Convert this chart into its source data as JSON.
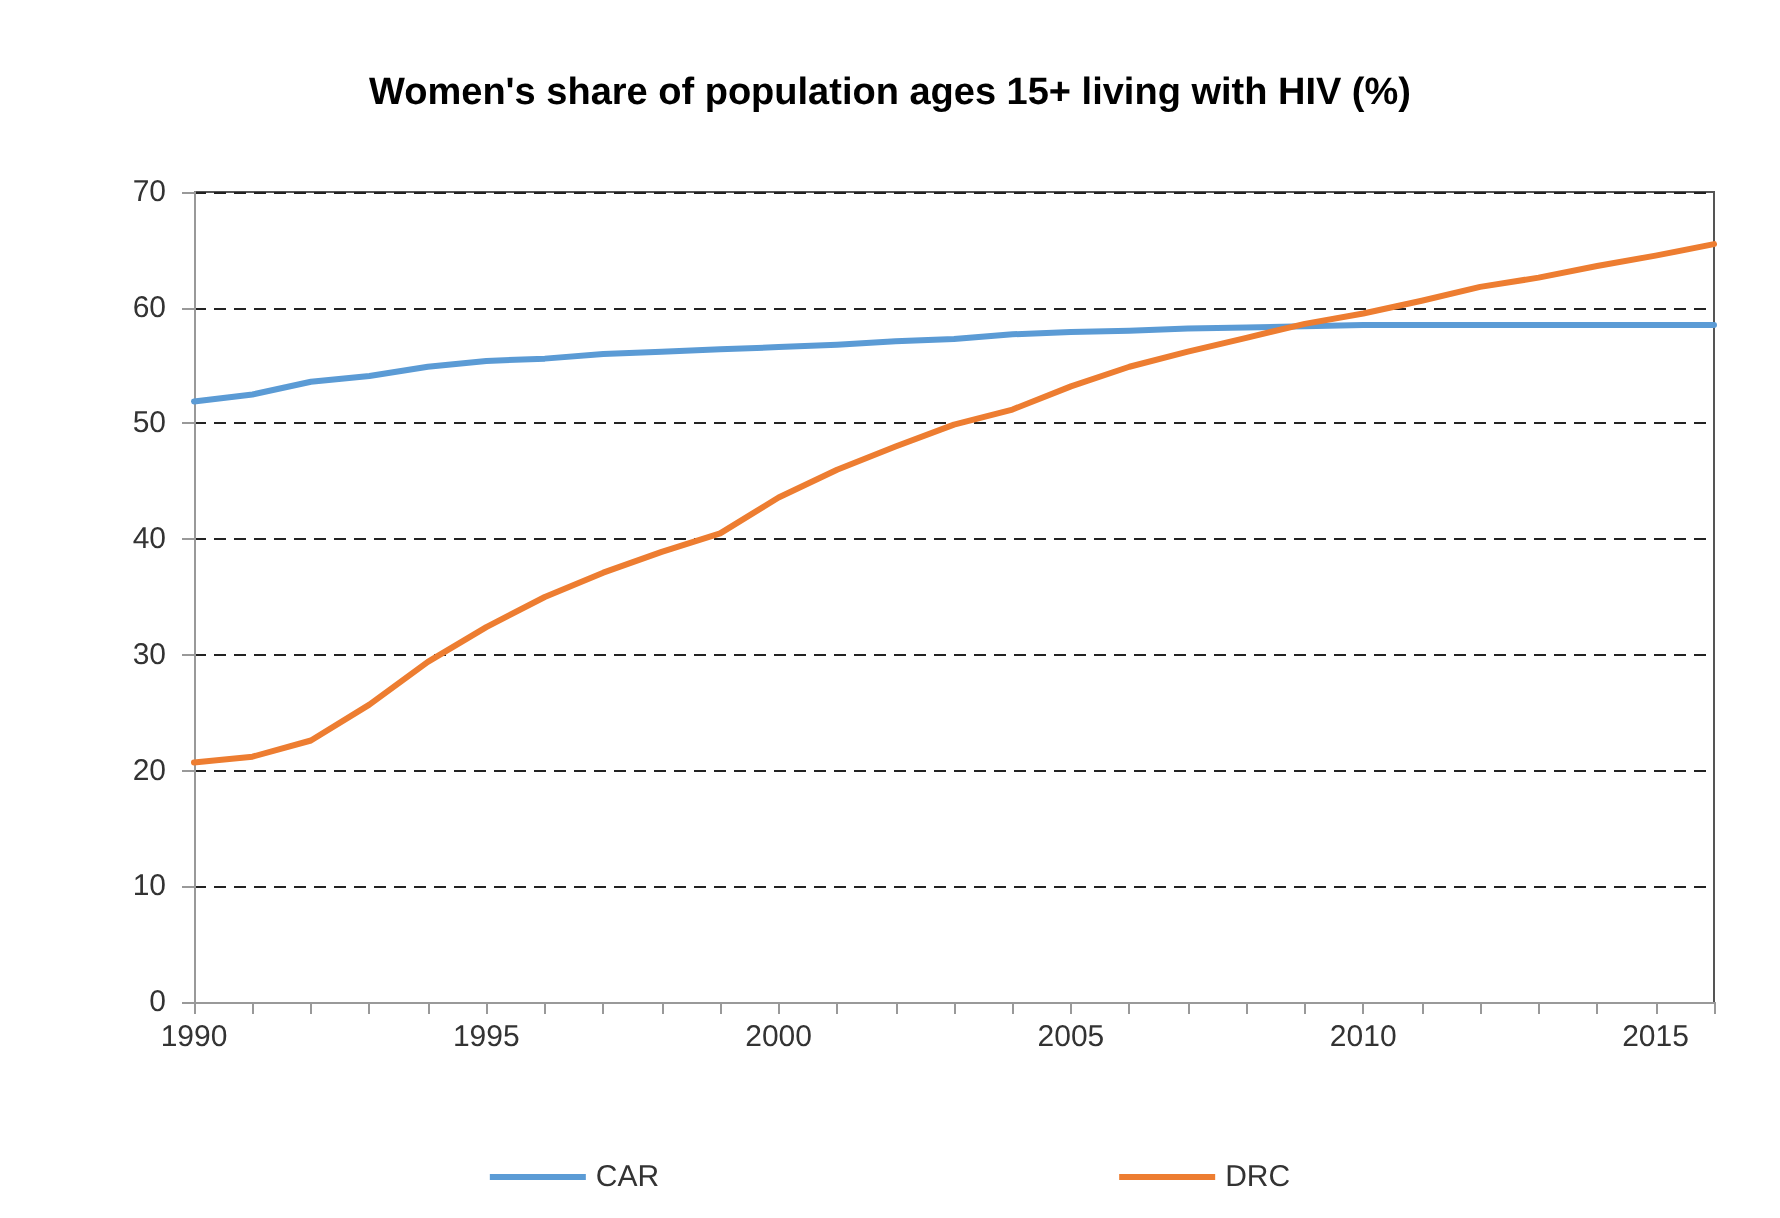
{
  "chart_data": {
    "type": "line",
    "title": "Women's share of population ages 15+ living with HIV (%)",
    "x": [
      1990,
      1991,
      1992,
      1993,
      1994,
      1995,
      1996,
      1997,
      1998,
      1999,
      2000,
      2001,
      2002,
      2003,
      2004,
      2005,
      2006,
      2007,
      2008,
      2009,
      2010,
      2011,
      2012,
      2013,
      2014,
      2015,
      2016
    ],
    "series": [
      {
        "name": "CAR",
        "color": "#5b9bd5",
        "values": [
          51.9,
          52.5,
          53.6,
          54.1,
          54.9,
          55.4,
          55.6,
          56.0,
          56.2,
          56.4,
          56.6,
          56.8,
          57.1,
          57.3,
          57.7,
          57.9,
          58.0,
          58.2,
          58.3,
          58.4,
          58.5,
          58.5,
          58.5,
          58.5,
          58.5,
          58.5,
          58.5
        ]
      },
      {
        "name": "DRC",
        "color": "#ed7d31",
        "values": [
          20.7,
          21.2,
          22.6,
          25.7,
          29.4,
          32.4,
          35.0,
          37.1,
          38.9,
          40.5,
          43.6,
          46.0,
          48.0,
          49.9,
          51.2,
          53.2,
          54.9,
          56.2,
          57.4,
          58.6,
          59.5,
          60.6,
          61.8,
          62.6,
          63.6,
          64.5,
          65.5
        ]
      }
    ],
    "xlim": [
      1990,
      2016
    ],
    "xticks": [
      1990,
      {
        "value": 1991,
        "label": null
      },
      {
        "value": 1992,
        "label": null
      },
      {
        "value": 1993,
        "label": null
      },
      {
        "value": 1994,
        "label": null
      },
      1995,
      {
        "value": 1996,
        "label": null
      },
      {
        "value": 1997,
        "label": null
      },
      {
        "value": 1998,
        "label": null
      },
      {
        "value": 1999,
        "label": null
      },
      2000,
      {
        "value": 2001,
        "label": null
      },
      {
        "value": 2002,
        "label": null
      },
      {
        "value": 2003,
        "label": null
      },
      {
        "value": 2004,
        "label": null
      },
      2005,
      {
        "value": 2006,
        "label": null
      },
      {
        "value": 2007,
        "label": null
      },
      {
        "value": 2008,
        "label": null
      },
      {
        "value": 2009,
        "label": null
      },
      2010,
      {
        "value": 2011,
        "label": null
      },
      {
        "value": 2012,
        "label": null
      },
      {
        "value": 2013,
        "label": null
      },
      {
        "value": 2014,
        "label": null
      },
      2015,
      {
        "value": 2016,
        "label": null
      }
    ],
    "ylim": [
      0,
      70
    ],
    "yticks": [
      0,
      10,
      20,
      30,
      40,
      50,
      60,
      70
    ],
    "grid": "y",
    "legend": "bottom",
    "marker": "none",
    "line_style": "solid"
  }
}
